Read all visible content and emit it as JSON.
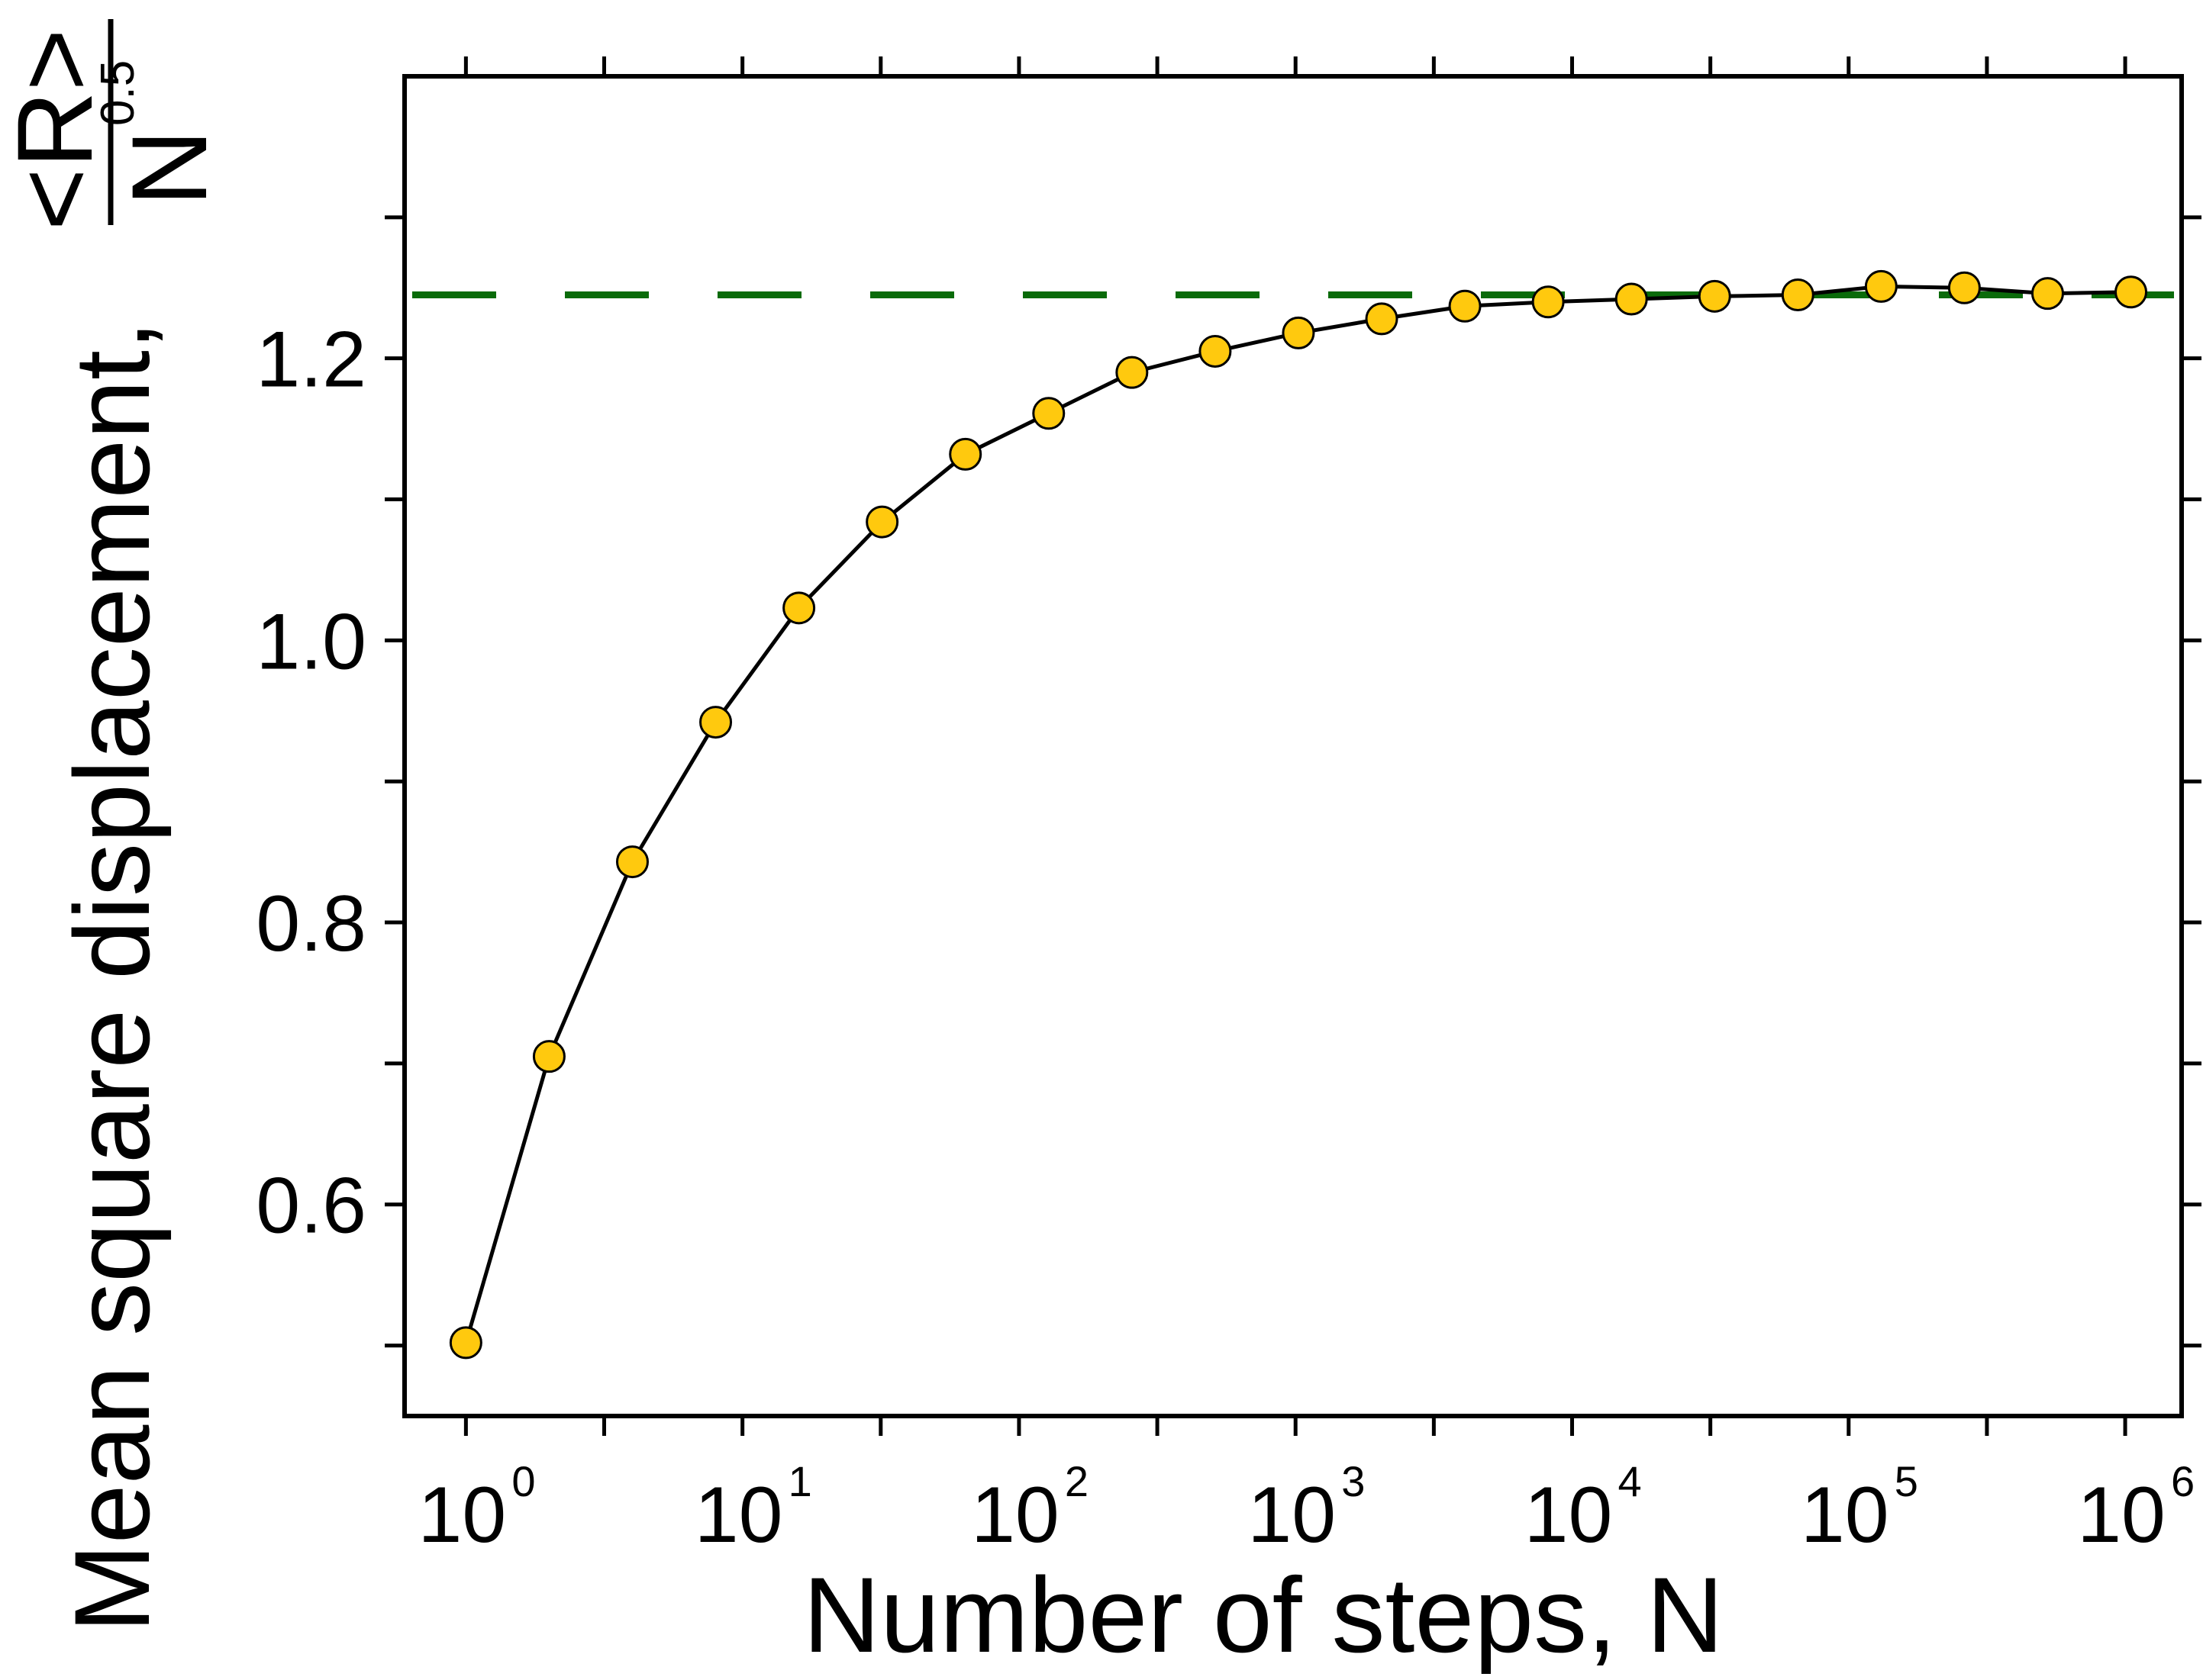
{
  "chart_data": {
    "type": "line",
    "xscale": "log",
    "xlim": [
      0.6,
      1600000
    ],
    "ylim": [
      0.45,
      1.4
    ],
    "grid": false,
    "legend": "none",
    "xlabel": "Number of steps, N",
    "ylabel_text": "Mean square displacement,",
    "ylabel_numerator": "<R>",
    "ylabel_denominator_base": "N",
    "ylabel_denominator_exp": "0.5",
    "x_ticks": [
      {
        "value": 1,
        "base": "10",
        "exp": "0"
      },
      {
        "value": 10,
        "base": "10",
        "exp": "1"
      },
      {
        "value": 100,
        "base": "10",
        "exp": "2"
      },
      {
        "value": 1000,
        "base": "10",
        "exp": "3"
      },
      {
        "value": 10000,
        "base": "10",
        "exp": "4"
      },
      {
        "value": 100000,
        "base": "10",
        "exp": "5"
      },
      {
        "value": 1000000,
        "base": "10",
        "exp": "6"
      }
    ],
    "y_ticks": [
      {
        "value": 0.6,
        "label": "0.6"
      },
      {
        "value": 0.8,
        "label": "0.8"
      },
      {
        "value": 1.0,
        "label": "1.0"
      },
      {
        "value": 1.2,
        "label": "1.2"
      }
    ],
    "y_minor_ticks": [
      0.5,
      0.7,
      0.9,
      1.1,
      1.3
    ],
    "reference_line": {
      "y": 1.245,
      "color": "#0a6b0a",
      "style": "dashed"
    },
    "series": [
      {
        "marker_color": "#ffc90e",
        "line_color": "#000000",
        "x": [
          1,
          2,
          4,
          8,
          16,
          32,
          64,
          128,
          256,
          512,
          1024,
          2048,
          4096,
          8192,
          16384,
          32768,
          65536,
          131072,
          262144,
          524288,
          1048576
        ],
        "y": [
          0.502,
          0.705,
          0.843,
          0.942,
          1.023,
          1.084,
          1.132,
          1.161,
          1.19,
          1.205,
          1.218,
          1.228,
          1.237,
          1.24,
          1.242,
          1.244,
          1.245,
          1.251,
          1.25,
          1.246,
          1.247
        ]
      }
    ]
  }
}
